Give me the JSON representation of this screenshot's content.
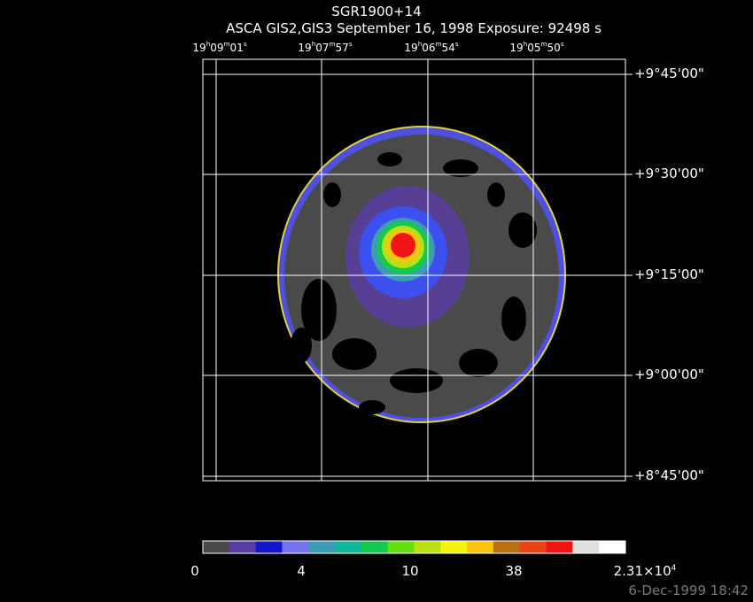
{
  "title": "SGR1900+14",
  "subtitle": "ASCA GIS2,GIS3 September 16, 1998 Exposure: 92498 s",
  "ra_labels": [
    [
      "19",
      "h",
      "09",
      "m",
      "01",
      "s"
    ],
    [
      "19",
      "h",
      "07",
      "m",
      "57",
      "s"
    ],
    [
      "19",
      "h",
      "06",
      "m",
      "54",
      "s"
    ],
    [
      "19",
      "h",
      "05",
      "m",
      "50",
      "s"
    ]
  ],
  "dec_labels": [
    "+9°45'00\"",
    "+9°30'00\"",
    "+9°15'00\"",
    "+9°00'00\"",
    "+8°45'00\""
  ],
  "colorbar": {
    "colors": [
      "#484848",
      "#5a3ca8",
      "#1414c8",
      "#7474f0",
      "#3c9cb4",
      "#10b89c",
      "#14c850",
      "#64e010",
      "#b8e014",
      "#f4f410",
      "#f8c410",
      "#b87010",
      "#e84414",
      "#f01414",
      "#e0e0e0",
      "#ffffff"
    ],
    "labels": [
      [
        "0"
      ],
      [
        "4"
      ],
      [
        "10"
      ],
      [
        "38"
      ],
      [
        "2.31×10",
        "4"
      ]
    ]
  },
  "footer": "6-Dec-1999 18:42"
}
